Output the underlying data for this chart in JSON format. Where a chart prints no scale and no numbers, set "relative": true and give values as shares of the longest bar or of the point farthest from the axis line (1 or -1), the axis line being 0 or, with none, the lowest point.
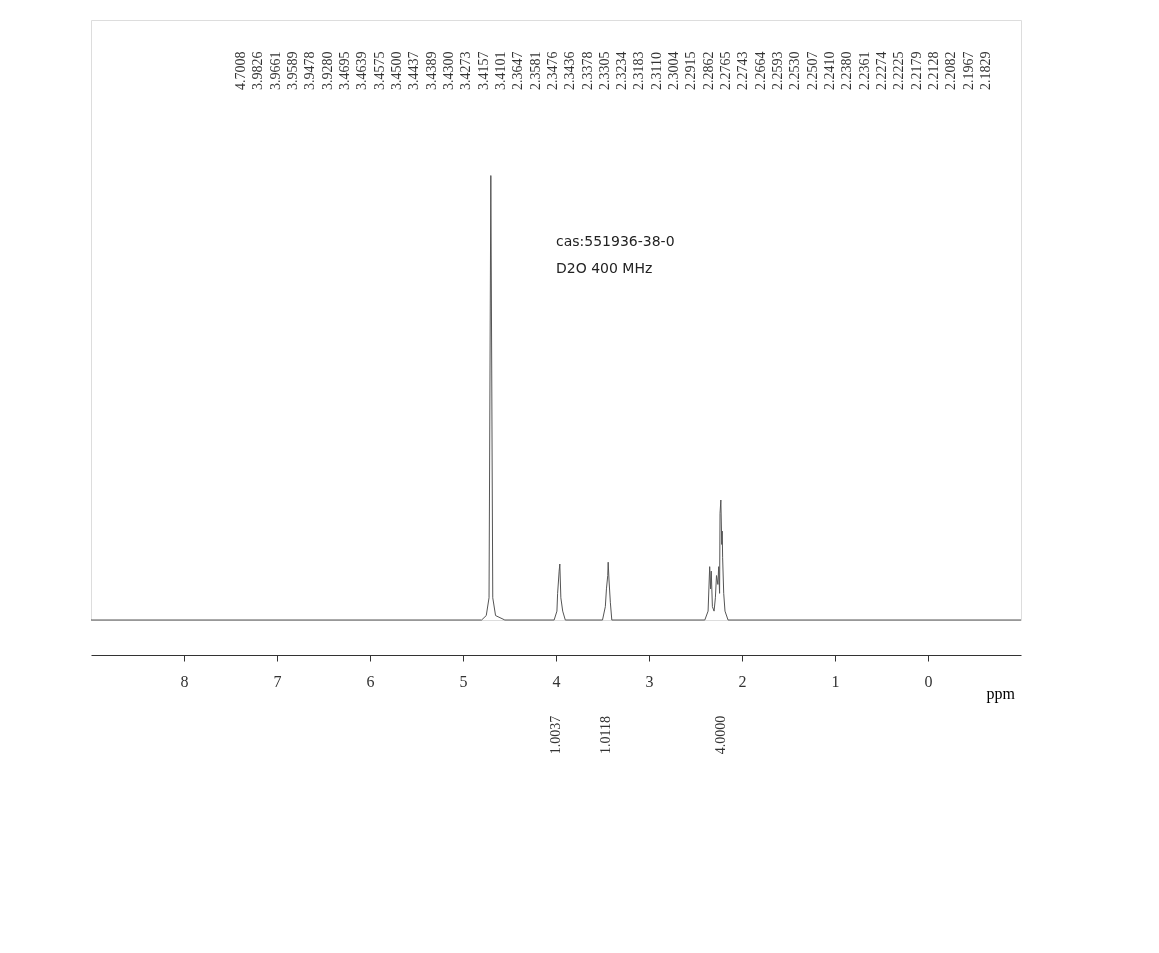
{
  "chart_data": {
    "type": "line",
    "relative": true,
    "xlabel": "ppm",
    "xlim": [
      9.0,
      -1.0
    ],
    "xticks": [
      8,
      7,
      6,
      5,
      4,
      3,
      2,
      1,
      0
    ],
    "grid": false,
    "marker": "none",
    "line_style": "solid",
    "x": [
      9.0,
      4.8,
      4.75,
      4.72,
      4.7008,
      4.68,
      4.65,
      4.55,
      4.02,
      3.99,
      3.9826,
      3.9661,
      3.9589,
      3.9478,
      3.928,
      3.9,
      3.5,
      3.4695,
      3.4575,
      3.4437,
      3.4389,
      3.43,
      3.4157,
      3.4,
      2.4,
      2.3647,
      2.3476,
      2.3378,
      2.3305,
      2.3183,
      2.3004,
      2.2862,
      2.2743,
      2.2593,
      2.2507,
      2.241,
      2.2361,
      2.2274,
      2.2179,
      2.2128,
      2.2082,
      2.1967,
      2.1829,
      2.15,
      -1.0
    ],
    "series": [
      {
        "color": "#555555",
        "values": [
          0,
          0,
          0.01,
          0.05,
          1.0,
          0.05,
          0.01,
          0,
          0,
          0.02,
          0.06,
          0.11,
          0.126,
          0.05,
          0.02,
          0,
          0,
          0.03,
          0.07,
          0.1,
          0.13,
          0.09,
          0.04,
          0,
          0,
          0.02,
          0.12,
          0.07,
          0.11,
          0.03,
          0.02,
          0.05,
          0.1,
          0.08,
          0.12,
          0.06,
          0.24,
          0.27,
          0.17,
          0.2,
          0.14,
          0.06,
          0.02,
          0,
          0
        ]
      }
    ],
    "annotations": [
      "4.7008",
      "3.9826",
      "3.9661",
      "3.9589",
      "3.9478",
      "3.9280",
      "3.4695",
      "3.4639",
      "3.4575",
      "3.4500",
      "3.4437",
      "3.4389",
      "3.4300",
      "3.4273",
      "3.4157",
      "3.4101",
      "2.3647",
      "2.3581",
      "2.3476",
      "2.3436",
      "2.3378",
      "2.3305",
      "2.3234",
      "2.3183",
      "2.3110",
      "2.3004",
      "2.2915",
      "2.2862",
      "2.2765",
      "2.2743",
      "2.2664",
      "2.2593",
      "2.2530",
      "2.2507",
      "2.2410",
      "2.2380",
      "2.2361",
      "2.2274",
      "2.2225",
      "2.2179",
      "2.2128",
      "2.2082",
      "2.1967",
      "2.1829",
      "1.0037",
      "1.0118",
      "4.0000",
      "cas:551936-38-0",
      "D2O  400 MHz"
    ]
  }
}
